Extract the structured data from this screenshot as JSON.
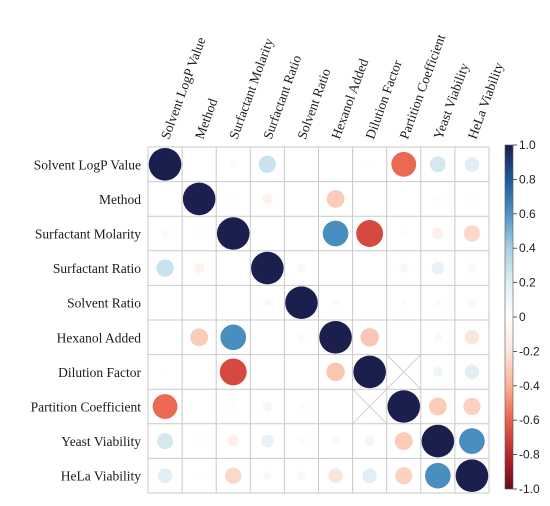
{
  "chart_data": {
    "type": "heatmap",
    "variables": [
      "Solvent LogP Value",
      "Method",
      "Surfactant Molarity",
      "Surfactant Ratio",
      "Solvent Ratio",
      "Hexanol Added",
      "Dilution Factor",
      "Partition Coefficient",
      "Yeast Viability",
      "HeLa Viability"
    ],
    "matrix": [
      [
        1.0,
        0.0,
        -0.05,
        0.28,
        0.0,
        0.0,
        -0.02,
        -0.58,
        0.24,
        0.2
      ],
      [
        0.0,
        1.0,
        -0.03,
        -0.1,
        0.0,
        -0.3,
        0.0,
        0.0,
        0.03,
        0.02
      ],
      [
        -0.05,
        -0.03,
        1.0,
        0.0,
        0.0,
        0.62,
        -0.68,
        -0.03,
        -0.12,
        -0.25
      ],
      [
        0.28,
        -0.1,
        0.0,
        1.0,
        0.06,
        0.0,
        0.0,
        -0.08,
        0.15,
        0.07
      ],
      [
        0.0,
        0.0,
        0.0,
        0.06,
        1.0,
        -0.05,
        0.0,
        -0.04,
        -0.05,
        -0.07
      ],
      [
        0.0,
        -0.3,
        0.62,
        0.0,
        -0.05,
        1.0,
        -0.32,
        0.0,
        -0.06,
        -0.2
      ],
      [
        -0.02,
        0.0,
        -0.68,
        0.0,
        0.0,
        -0.32,
        1.0,
        null,
        0.1,
        0.2
      ],
      [
        -0.58,
        0.0,
        -0.03,
        -0.08,
        -0.04,
        0.0,
        null,
        1.0,
        -0.3,
        -0.28
      ],
      [
        0.24,
        0.03,
        -0.12,
        0.15,
        -0.05,
        -0.06,
        0.1,
        -0.3,
        1.0,
        0.62
      ],
      [
        0.2,
        0.02,
        -0.25,
        0.07,
        -0.07,
        -0.2,
        0.2,
        -0.28,
        0.62,
        1.0
      ]
    ],
    "value_range": [
      -1.0,
      1.0
    ],
    "colorbar_ticks": [
      "1.0",
      "0.8",
      "0.6",
      "0.4",
      "0.2",
      "0",
      "-0.2",
      "-0.4",
      "-0.6",
      "-0.8",
      "-1.0"
    ],
    "colormap": [
      "#6b0a1e",
      "#b8262f",
      "#e8604d",
      "#fbb194",
      "#fbe6dc",
      "#ffffff",
      "#e1eef5",
      "#a6cfe4",
      "#4d94c3",
      "#1e5b98",
      "#1a1f4d"
    ],
    "marker": "circle",
    "grid": true,
    "missing_cells_marked": "cross"
  }
}
